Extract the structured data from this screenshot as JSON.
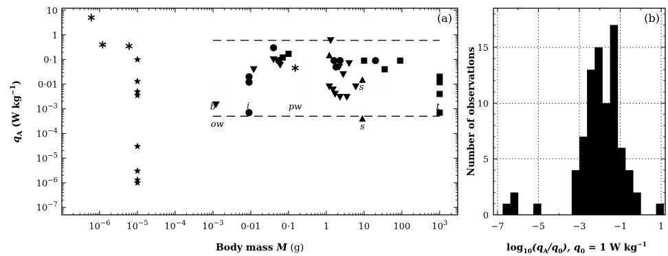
{
  "chart_data": [
    {
      "id": "a",
      "type": "scatter",
      "panel_label": "(a)",
      "xlabel_main": "Body mass ",
      "xlabel_var": "M",
      "xlabel_unit": " (g)",
      "ylabel_main": "q",
      "ylabel_sub": "A",
      "ylabel_unit": " (W kg",
      "ylabel_exp": "−1",
      "ylabel_close": ")",
      "xscale": "log",
      "yscale": "log",
      "xlim": [
        1e-07,
        3000.0
      ],
      "ylim": [
        5e-08,
        12
      ],
      "x_ticks": [
        {
          "value": 1e-06,
          "base": "10",
          "exp": "−6"
        },
        {
          "value": 1e-05,
          "base": "10",
          "exp": "−5"
        },
        {
          "value": 0.0001,
          "base": "10",
          "exp": "−4"
        },
        {
          "value": 0.001,
          "base": "10",
          "exp": "−3"
        },
        {
          "value": 0.01,
          "text": "0·01"
        },
        {
          "value": 0.1,
          "text": "0·1"
        },
        {
          "value": 1,
          "text": "1"
        },
        {
          "value": 10,
          "text": "10"
        },
        {
          "value": 100,
          "text": "100"
        },
        {
          "value": 1000,
          "base": "10",
          "exp": "3"
        }
      ],
      "y_ticks": [
        {
          "value": 10,
          "text": "10"
        },
        {
          "value": 1,
          "text": "1"
        },
        {
          "value": 0.1,
          "text": "0·1"
        },
        {
          "value": 0.01,
          "text": "0·01"
        },
        {
          "value": 0.001,
          "base": "10",
          "exp": "−3"
        },
        {
          "value": 0.0001,
          "base": "10",
          "exp": "−4"
        },
        {
          "value": 1e-05,
          "base": "10",
          "exp": "−5"
        },
        {
          "value": 1e-06,
          "base": "10",
          "exp": "−6"
        },
        {
          "value": 1e-07,
          "base": "10",
          "exp": "−7"
        }
      ],
      "reference_lines": [
        0.6,
        0.0005
      ],
      "ref_line_xrange": [
        0.001,
        1000
      ],
      "series": [
        {
          "marker": "asterisk",
          "points": [
            [
              6e-07,
              5
            ],
            [
              1.2e-06,
              0.4
            ],
            [
              6e-06,
              0.35
            ]
          ]
        },
        {
          "marker": "star",
          "points": [
            [
              1e-05,
              0.1
            ],
            [
              1e-05,
              0.013
            ],
            [
              1e-05,
              0.005
            ],
            [
              1e-05,
              0.0035
            ],
            [
              1e-05,
              3e-05
            ],
            [
              1e-05,
              3e-06
            ],
            [
              1e-05,
              1.3e-06
            ],
            [
              1e-05,
              1e-06
            ]
          ]
        },
        {
          "marker": "asterisk",
          "points": [
            [
              0.15,
              0.045
            ]
          ]
        },
        {
          "marker": "bowtie",
          "points": [
            [
              0.0015,
              0.009
            ],
            [
              0.0015,
              0.004
            ],
            [
              0.0015,
              0.0025
            ],
            [
              0.0015,
              0.0005
            ],
            [
              0.018,
              0.07
            ],
            [
              0.08,
              0.14
            ],
            [
              0.25,
              0.06
            ],
            [
              0.25,
              0.03
            ],
            [
              0.25,
              0.013
            ],
            [
              0.25,
              0.006
            ],
            [
              0.25,
              0.0035
            ],
            [
              0.25,
              0.002
            ],
            [
              0.25,
              0.0013
            ],
            [
              3,
              0.011
            ],
            [
              4,
              0.009
            ],
            [
              40,
              0.006
            ],
            [
              0.12,
              0.13
            ]
          ]
        },
        {
          "marker": "triangle_down",
          "points": [
            [
              0.0012,
              0.0015
            ],
            [
              0.012,
              0.04
            ],
            [
              0.04,
              0.1
            ],
            [
              0.06,
              0.06
            ],
            [
              1.3,
              0.6
            ],
            [
              1.2,
              0.008
            ],
            [
              1.7,
              0.004
            ],
            [
              2.2,
              0.05
            ],
            [
              2.8,
              0.025
            ],
            [
              1.5,
              0.006
            ],
            [
              2.3,
              0.003
            ],
            [
              3.5,
              0.003
            ],
            [
              4,
              0.07
            ],
            [
              6,
              0.008
            ]
          ]
        },
        {
          "marker": "circle",
          "points": [
            [
              0.009,
              0.02
            ],
            [
              0.009,
              0.012
            ],
            [
              0.009,
              0.0007
            ],
            [
              0.04,
              0.3
            ],
            [
              0.055,
              0.09
            ],
            [
              1.6,
              0.09
            ],
            [
              1.8,
              0.05
            ],
            [
              2.3,
              0.09
            ],
            [
              20,
              0.09
            ]
          ]
        },
        {
          "marker": "square",
          "points": [
            [
              0.07,
              0.12
            ],
            [
              0.1,
              0.17
            ],
            [
              10,
              0.09
            ],
            [
              35,
              0.04
            ],
            [
              90,
              0.09
            ],
            [
              1000,
              0.02
            ],
            [
              1000,
              0.012
            ],
            [
              1000,
              0.004
            ],
            [
              1000,
              0.0007
            ]
          ]
        },
        {
          "marker": "triangle_up",
          "points": [
            [
              1.2,
              0.15
            ],
            [
              9,
              0.015
            ],
            [
              9,
              0.0004
            ]
          ]
        }
      ],
      "annotations": [
        {
          "text": "b",
          "x": 0.001,
          "y": 0.0013
        },
        {
          "text": "ow",
          "x": 0.0013,
          "y": 0.00025
        },
        {
          "text": "i",
          "x": 0.0085,
          "y": 0.0014
        },
        {
          "text": "pw",
          "x": 0.15,
          "y": 0.0013
        },
        {
          "text": "s",
          "x": 8.5,
          "y": 0.008
        },
        {
          "text": "s",
          "x": 9,
          "y": 0.0002
        },
        {
          "text": "t",
          "x": 900,
          "y": 0.0013
        }
      ]
    },
    {
      "id": "b",
      "type": "histogram",
      "panel_label": "(b)",
      "xlabel_pre": "log",
      "xlabel_sub": "10",
      "xlabel_arg": "(q",
      "xlabel_argsub": "A",
      "xlabel_mid": "/q",
      "xlabel_midsub": "0",
      "xlabel_post": "),  q",
      "xlabel_postsub": "0",
      "xlabel_end": " = 1 W kg",
      "xlabel_exp": "−1",
      "ylabel": "Number of observations",
      "xlim": [
        -7.2,
        1.2
      ],
      "ylim": [
        0,
        18.5
      ],
      "grid": true,
      "x_ticks": [
        {
          "value": -7,
          "text": "−7"
        },
        {
          "value": -5,
          "text": "−5"
        },
        {
          "value": -3,
          "text": "−3"
        },
        {
          "value": -1,
          "text": "−1"
        },
        {
          "value": 1,
          "text": "1"
        }
      ],
      "y_ticks": [
        {
          "value": 0,
          "text": "0"
        },
        {
          "value": 5,
          "text": "5"
        },
        {
          "value": 10,
          "text": "10"
        },
        {
          "value": 15,
          "text": "15"
        }
      ],
      "bin_edges": [
        -6.75,
        -6.375,
        -6.0,
        -5.625,
        -5.25,
        -4.875,
        -4.5,
        -4.125,
        -3.75,
        -3.375,
        -3.0,
        -2.625,
        -2.25,
        -1.875,
        -1.5,
        -1.125,
        -0.75,
        -0.375,
        0.0,
        0.375,
        0.75,
        1.125
      ],
      "counts": [
        1,
        2,
        0,
        0,
        1,
        0,
        0,
        0,
        0,
        4,
        7,
        13,
        15,
        10,
        17,
        6,
        4,
        2,
        0,
        0,
        1
      ]
    }
  ]
}
